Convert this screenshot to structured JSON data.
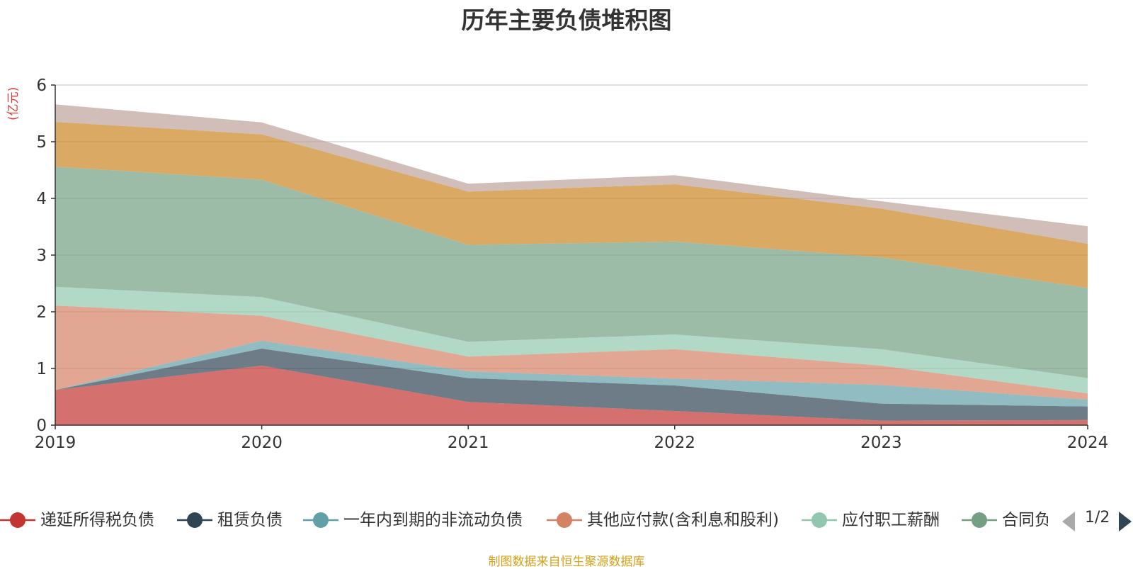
{
  "chart_data": {
    "type": "area",
    "title": "历年主要负债堆积图",
    "unit_label": "(亿元)",
    "categories": [
      "2019",
      "2020",
      "2021",
      "2022",
      "2023",
      "2024"
    ],
    "ylim": [
      0,
      6
    ],
    "yticks": [
      0,
      1,
      2,
      3,
      4,
      5,
      6
    ],
    "grid": true,
    "stacked": true,
    "legend_position": "bottom",
    "series": [
      {
        "name": "递延所得税负债",
        "color": "#c23531",
        "values": [
          0.62,
          1.05,
          0.41,
          0.25,
          0.08,
          0.09
        ]
      },
      {
        "name": "租赁负债",
        "color": "#2f4554",
        "values": [
          0.0,
          0.3,
          0.42,
          0.45,
          0.3,
          0.24
        ]
      },
      {
        "name": "一年内到期的非流动负债",
        "color": "#61a0a8",
        "values": [
          0.0,
          0.14,
          0.12,
          0.12,
          0.33,
          0.12
        ]
      },
      {
        "name": "其他应付款(含利息和股利)",
        "color": "#d48265",
        "values": [
          1.49,
          0.44,
          0.26,
          0.52,
          0.34,
          0.11
        ]
      },
      {
        "name": "应付职工薪酬",
        "color": "#91c7ae",
        "values": [
          0.33,
          0.33,
          0.26,
          0.26,
          0.29,
          0.27
        ]
      },
      {
        "name": "合同负债",
        "color": "#749f83",
        "values": [
          2.12,
          2.07,
          1.71,
          1.64,
          1.62,
          1.59
        ]
      },
      {
        "name": "",
        "color": "#ca8622",
        "values": [
          0.79,
          0.8,
          0.94,
          1.01,
          0.86,
          0.78
        ]
      },
      {
        "name": "",
        "color": "#bda29a",
        "values": [
          0.31,
          0.21,
          0.14,
          0.16,
          0.13,
          0.31
        ]
      }
    ]
  },
  "legend": {
    "page_info": "1/2",
    "visible_labels": [
      "递延所得税负债",
      "租赁负债",
      "一年内到期的非流动负债",
      "其他应付款(含利息和股利)",
      "应付职工薪酬",
      "合同负"
    ]
  },
  "source_note": "制图数据来自恒生聚源数据库"
}
